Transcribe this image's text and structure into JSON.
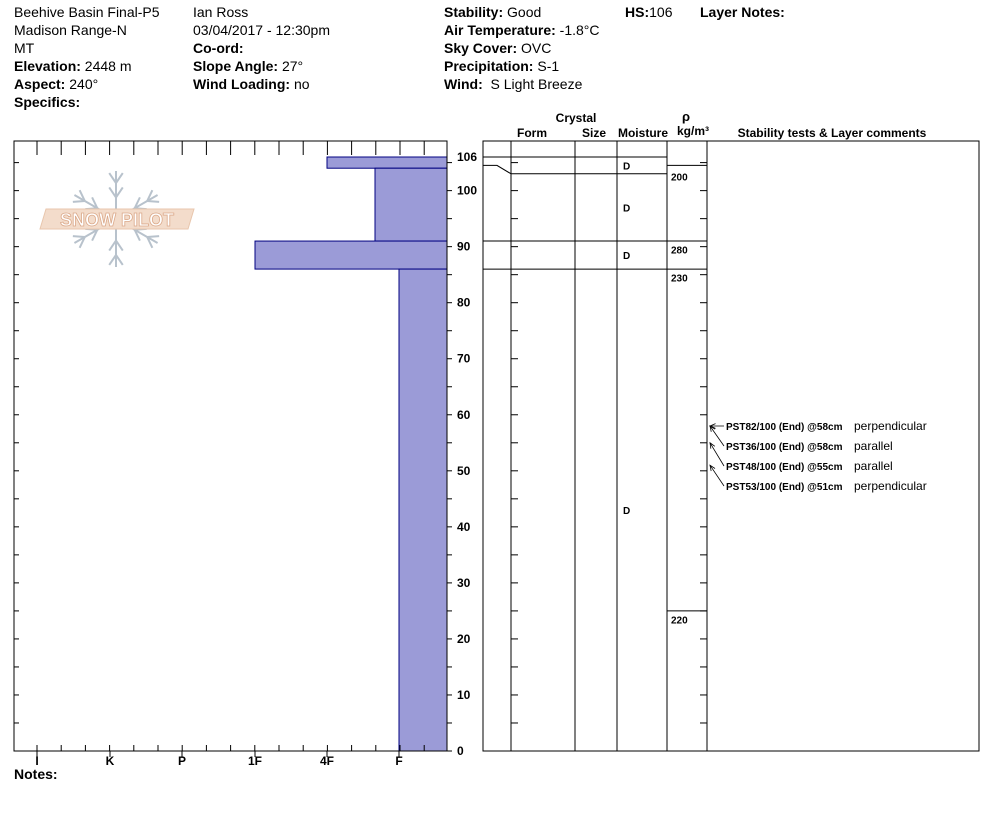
{
  "header": {
    "location": "Beehive Basin Final-P5",
    "range": "Madison Range-N",
    "state": "MT",
    "elevation_label": "Elevation:",
    "elevation": "2448 m",
    "aspect_label": "Aspect:",
    "aspect": "240°",
    "specifics_label": "Specifics:",
    "observer": "Ian Ross",
    "datetime": "03/04/2017 - 12:30pm",
    "coord_label": "Co-ord:",
    "slope_label": "Slope Angle:",
    "slope": "27°",
    "wind_loading_label": "Wind Loading:",
    "wind_loading": "no",
    "stability_label": "Stability:",
    "stability": "Good",
    "air_temp_label": "Air Temperature:",
    "air_temp": "-1.8°C",
    "sky_label": "Sky Cover:",
    "sky": "OVC",
    "precip_label": "Precipitation:",
    "precip": "S-1",
    "wind_label": "Wind:",
    "wind": "S Light Breeze",
    "hs_label": "HS:",
    "hs": "106",
    "layer_notes_label": "Layer Notes:"
  },
  "notes_label": "Notes:",
  "logo_text": "SNOW PILOT",
  "columns": {
    "crystal": "Crystal",
    "form": "Form",
    "size": "Size",
    "moisture": "Moisture",
    "rho": "ρ",
    "density_unit": "kg/m³",
    "stability": "Stability tests & Layer comments"
  },
  "chart_data": {
    "type": "bar",
    "title": "",
    "xlabel": "",
    "ylabel": "",
    "ylim": [
      0,
      106
    ],
    "hardness_scale": [
      "I",
      "K",
      "P",
      "1F",
      "4F",
      "F"
    ],
    "y_ticks": [
      0,
      10,
      20,
      30,
      40,
      50,
      60,
      70,
      80,
      90,
      100,
      106
    ],
    "bar_color": "#9b9bd7",
    "layers": [
      {
        "top": 106,
        "bottom": 104,
        "hardness": "4F"
      },
      {
        "top": 104,
        "bottom": 91,
        "hardness": "F+"
      },
      {
        "top": 91,
        "bottom": 86,
        "hardness": "1F"
      },
      {
        "top": 86,
        "bottom": 0,
        "hardness": "F"
      }
    ],
    "layer_boundaries": [
      104.5,
      103,
      91,
      86
    ],
    "moisture": [
      {
        "depth": 104.5,
        "value": "D"
      },
      {
        "depth": 97,
        "value": "D"
      },
      {
        "depth": 88.5,
        "value": "D"
      },
      {
        "depth": 43,
        "value": "D"
      }
    ],
    "density": [
      {
        "boundary": 104.5,
        "label_at": 102.5,
        "value": "200"
      },
      {
        "boundary": 91,
        "label_at": 89.5,
        "value": "280"
      },
      {
        "boundary": 86,
        "label_at": 84.5,
        "value": "230"
      },
      {
        "boundary": 25,
        "label_at": 23.5,
        "value": "220"
      }
    ],
    "stability_tests": [
      {
        "depth": 58,
        "code": "PST82/100 (End) @58cm",
        "comment": "perpendicular"
      },
      {
        "depth": 58,
        "code": "PST36/100 (End) @58cm",
        "comment": "parallel"
      },
      {
        "depth": 55,
        "code": "PST48/100 (End) @55cm",
        "comment": "parallel"
      },
      {
        "depth": 51,
        "code": "PST53/100 (End) @51cm",
        "comment": "perpendicular"
      }
    ]
  }
}
